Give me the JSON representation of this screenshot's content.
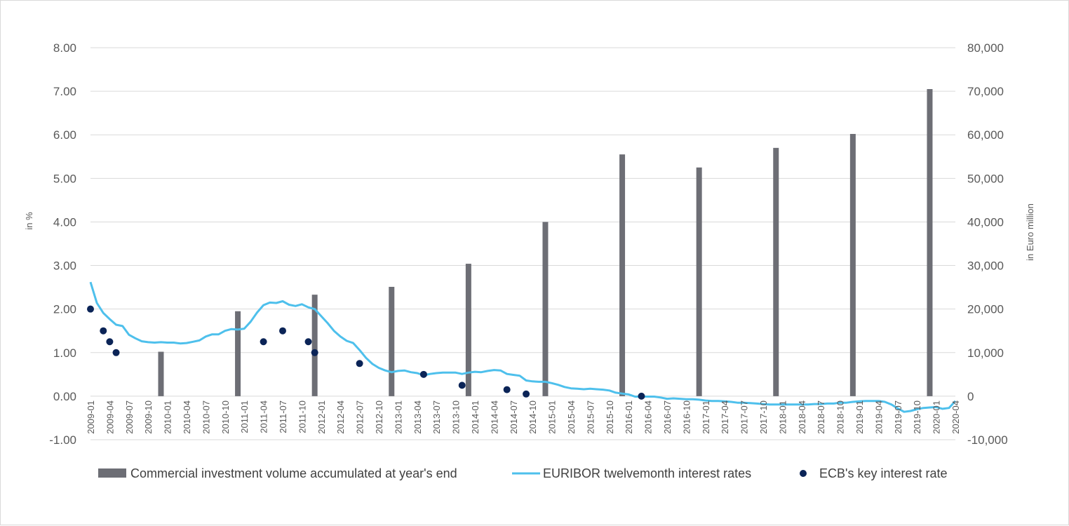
{
  "chart_data": {
    "type": "bar",
    "title": "",
    "y_left": {
      "label": "in %",
      "range": [
        -1.0,
        8.0
      ],
      "ticks": [
        "-1.00",
        "0.00",
        "1.00",
        "2.00",
        "3.00",
        "4.00",
        "5.00",
        "6.00",
        "7.00",
        "8.00"
      ]
    },
    "y_right": {
      "label": "in Euro million",
      "range": [
        -10000,
        80000
      ],
      "ticks": [
        "-10,000",
        "0",
        "10,000",
        "20,000",
        "30,000",
        "40,000",
        "50,000",
        "60,000",
        "70,000",
        "80,000"
      ]
    },
    "x_tick_labels": [
      "2009-01",
      "2009-04",
      "2009-07",
      "2009-10",
      "2010-01",
      "2010-04",
      "2010-07",
      "2010-10",
      "2011-01",
      "2011-04",
      "2011-07",
      "2011-10",
      "2012-01",
      "2012-04",
      "2012-07",
      "2012-10",
      "2013-01",
      "2013-04",
      "2013-07",
      "2013-10",
      "2014-01",
      "2014-04",
      "2014-07",
      "2014-10",
      "2015-01",
      "2015-04",
      "2015-07",
      "2015-10",
      "2016-01",
      "2016-04",
      "2016-07",
      "2016-10",
      "2017-01",
      "2017-04",
      "2017-07",
      "2017-10",
      "2018-01",
      "2018-04",
      "2018-07",
      "2018-10",
      "2019-01",
      "2019-04",
      "2019-07",
      "2019-10",
      "2020-01",
      "2020-04"
    ],
    "grid": "horizontal",
    "legend_position": "bottom",
    "series": [
      {
        "name": "Commercial investment volume accumulated at year's end",
        "type": "bar",
        "axis": "right",
        "color": "#6d6e75",
        "points": [
          {
            "x": "2009-12",
            "y": 10200
          },
          {
            "x": "2010-12",
            "y": 19500
          },
          {
            "x": "2011-12",
            "y": 23300
          },
          {
            "x": "2012-12",
            "y": 25100
          },
          {
            "x": "2013-12",
            "y": 30400
          },
          {
            "x": "2014-12",
            "y": 40000
          },
          {
            "x": "2015-12",
            "y": 55500
          },
          {
            "x": "2016-12",
            "y": 52500
          },
          {
            "x": "2017-12",
            "y": 57000
          },
          {
            "x": "2018-12",
            "y": 60200
          },
          {
            "x": "2019-12",
            "y": 70500
          }
        ]
      },
      {
        "name": "EURIBOR twelvemonth interest rates",
        "type": "line",
        "axis": "left",
        "color": "#4ec0ec",
        "points": [
          {
            "x": "2009-01",
            "y": 2.62
          },
          {
            "x": "2009-02",
            "y": 2.14
          },
          {
            "x": "2009-03",
            "y": 1.91
          },
          {
            "x": "2009-04",
            "y": 1.77
          },
          {
            "x": "2009-05",
            "y": 1.64
          },
          {
            "x": "2009-06",
            "y": 1.61
          },
          {
            "x": "2009-07",
            "y": 1.41
          },
          {
            "x": "2009-08",
            "y": 1.33
          },
          {
            "x": "2009-09",
            "y": 1.26
          },
          {
            "x": "2009-10",
            "y": 1.24
          },
          {
            "x": "2009-11",
            "y": 1.23
          },
          {
            "x": "2009-12",
            "y": 1.24
          },
          {
            "x": "2010-01",
            "y": 1.23
          },
          {
            "x": "2010-02",
            "y": 1.23
          },
          {
            "x": "2010-03",
            "y": 1.21
          },
          {
            "x": "2010-04",
            "y": 1.22
          },
          {
            "x": "2010-05",
            "y": 1.25
          },
          {
            "x": "2010-06",
            "y": 1.28
          },
          {
            "x": "2010-07",
            "y": 1.37
          },
          {
            "x": "2010-08",
            "y": 1.42
          },
          {
            "x": "2010-09",
            "y": 1.42
          },
          {
            "x": "2010-10",
            "y": 1.5
          },
          {
            "x": "2010-11",
            "y": 1.54
          },
          {
            "x": "2010-12",
            "y": 1.53
          },
          {
            "x": "2011-01",
            "y": 1.55
          },
          {
            "x": "2011-02",
            "y": 1.71
          },
          {
            "x": "2011-03",
            "y": 1.92
          },
          {
            "x": "2011-04",
            "y": 2.09
          },
          {
            "x": "2011-05",
            "y": 2.15
          },
          {
            "x": "2011-06",
            "y": 2.14
          },
          {
            "x": "2011-07",
            "y": 2.18
          },
          {
            "x": "2011-08",
            "y": 2.1
          },
          {
            "x": "2011-09",
            "y": 2.07
          },
          {
            "x": "2011-10",
            "y": 2.11
          },
          {
            "x": "2011-11",
            "y": 2.04
          },
          {
            "x": "2011-12",
            "y": 2.0
          },
          {
            "x": "2012-01",
            "y": 1.84
          },
          {
            "x": "2012-02",
            "y": 1.68
          },
          {
            "x": "2012-03",
            "y": 1.5
          },
          {
            "x": "2012-04",
            "y": 1.37
          },
          {
            "x": "2012-05",
            "y": 1.27
          },
          {
            "x": "2012-06",
            "y": 1.22
          },
          {
            "x": "2012-07",
            "y": 1.06
          },
          {
            "x": "2012-08",
            "y": 0.88
          },
          {
            "x": "2012-09",
            "y": 0.74
          },
          {
            "x": "2012-10",
            "y": 0.65
          },
          {
            "x": "2012-11",
            "y": 0.59
          },
          {
            "x": "2012-12",
            "y": 0.55
          },
          {
            "x": "2013-01",
            "y": 0.58
          },
          {
            "x": "2013-02",
            "y": 0.59
          },
          {
            "x": "2013-03",
            "y": 0.55
          },
          {
            "x": "2013-04",
            "y": 0.53
          },
          {
            "x": "2013-05",
            "y": 0.48
          },
          {
            "x": "2013-06",
            "y": 0.51
          },
          {
            "x": "2013-07",
            "y": 0.53
          },
          {
            "x": "2013-08",
            "y": 0.54
          },
          {
            "x": "2013-09",
            "y": 0.54
          },
          {
            "x": "2013-10",
            "y": 0.54
          },
          {
            "x": "2013-11",
            "y": 0.51
          },
          {
            "x": "2013-12",
            "y": 0.54
          },
          {
            "x": "2014-01",
            "y": 0.56
          },
          {
            "x": "2014-02",
            "y": 0.55
          },
          {
            "x": "2014-03",
            "y": 0.58
          },
          {
            "x": "2014-04",
            "y": 0.6
          },
          {
            "x": "2014-05",
            "y": 0.59
          },
          {
            "x": "2014-06",
            "y": 0.51
          },
          {
            "x": "2014-07",
            "y": 0.49
          },
          {
            "x": "2014-08",
            "y": 0.47
          },
          {
            "x": "2014-09",
            "y": 0.36
          },
          {
            "x": "2014-10",
            "y": 0.34
          },
          {
            "x": "2014-11",
            "y": 0.33
          },
          {
            "x": "2014-12",
            "y": 0.33
          },
          {
            "x": "2015-01",
            "y": 0.3
          },
          {
            "x": "2015-02",
            "y": 0.26
          },
          {
            "x": "2015-03",
            "y": 0.21
          },
          {
            "x": "2015-04",
            "y": 0.18
          },
          {
            "x": "2015-05",
            "y": 0.17
          },
          {
            "x": "2015-06",
            "y": 0.16
          },
          {
            "x": "2015-07",
            "y": 0.17
          },
          {
            "x": "2015-08",
            "y": 0.16
          },
          {
            "x": "2015-09",
            "y": 0.15
          },
          {
            "x": "2015-10",
            "y": 0.13
          },
          {
            "x": "2015-11",
            "y": 0.08
          },
          {
            "x": "2015-12",
            "y": 0.06
          },
          {
            "x": "2016-01",
            "y": 0.04
          },
          {
            "x": "2016-02",
            "y": -0.01
          },
          {
            "x": "2016-03",
            "y": -0.01
          },
          {
            "x": "2016-04",
            "y": -0.01
          },
          {
            "x": "2016-05",
            "y": -0.01
          },
          {
            "x": "2016-06",
            "y": -0.03
          },
          {
            "x": "2016-07",
            "y": -0.06
          },
          {
            "x": "2016-08",
            "y": -0.05
          },
          {
            "x": "2016-09",
            "y": -0.06
          },
          {
            "x": "2016-10",
            "y": -0.07
          },
          {
            "x": "2016-11",
            "y": -0.07
          },
          {
            "x": "2016-12",
            "y": -0.08
          },
          {
            "x": "2017-01",
            "y": -0.1
          },
          {
            "x": "2017-02",
            "y": -0.11
          },
          {
            "x": "2017-03",
            "y": -0.11
          },
          {
            "x": "2017-04",
            "y": -0.12
          },
          {
            "x": "2017-05",
            "y": -0.13
          },
          {
            "x": "2017-06",
            "y": -0.15
          },
          {
            "x": "2017-07",
            "y": -0.15
          },
          {
            "x": "2017-08",
            "y": -0.16
          },
          {
            "x": "2017-09",
            "y": -0.17
          },
          {
            "x": "2017-10",
            "y": -0.18
          },
          {
            "x": "2017-11",
            "y": -0.19
          },
          {
            "x": "2017-12",
            "y": -0.19
          },
          {
            "x": "2018-01",
            "y": -0.19
          },
          {
            "x": "2018-02",
            "y": -0.19
          },
          {
            "x": "2018-03",
            "y": -0.19
          },
          {
            "x": "2018-04",
            "y": -0.19
          },
          {
            "x": "2018-05",
            "y": -0.19
          },
          {
            "x": "2018-06",
            "y": -0.18
          },
          {
            "x": "2018-07",
            "y": -0.18
          },
          {
            "x": "2018-08",
            "y": -0.17
          },
          {
            "x": "2018-09",
            "y": -0.17
          },
          {
            "x": "2018-10",
            "y": -0.15
          },
          {
            "x": "2018-11",
            "y": -0.15
          },
          {
            "x": "2018-12",
            "y": -0.13
          },
          {
            "x": "2019-01",
            "y": -0.12
          },
          {
            "x": "2019-02",
            "y": -0.11
          },
          {
            "x": "2019-03",
            "y": -0.11
          },
          {
            "x": "2019-04",
            "y": -0.11
          },
          {
            "x": "2019-05",
            "y": -0.13
          },
          {
            "x": "2019-06",
            "y": -0.19
          },
          {
            "x": "2019-07",
            "y": -0.28
          },
          {
            "x": "2019-08",
            "y": -0.36
          },
          {
            "x": "2019-09",
            "y": -0.34
          },
          {
            "x": "2019-10",
            "y": -0.3
          },
          {
            "x": "2019-11",
            "y": -0.27
          },
          {
            "x": "2019-12",
            "y": -0.26
          },
          {
            "x": "2020-01",
            "y": -0.25
          },
          {
            "x": "2020-02",
            "y": -0.29
          },
          {
            "x": "2020-03",
            "y": -0.27
          },
          {
            "x": "2020-04",
            "y": -0.11
          }
        ]
      },
      {
        "name": "ECB's key interest rate",
        "type": "scatter",
        "axis": "left",
        "color": "#0b2457",
        "points": [
          {
            "x": "2009-01",
            "y": 2.0
          },
          {
            "x": "2009-03",
            "y": 1.5
          },
          {
            "x": "2009-04",
            "y": 1.25
          },
          {
            "x": "2009-05",
            "y": 1.0
          },
          {
            "x": "2011-04",
            "y": 1.25
          },
          {
            "x": "2011-07",
            "y": 1.5
          },
          {
            "x": "2011-11",
            "y": 1.25
          },
          {
            "x": "2011-12",
            "y": 1.0
          },
          {
            "x": "2012-07",
            "y": 0.75
          },
          {
            "x": "2013-05",
            "y": 0.5
          },
          {
            "x": "2013-11",
            "y": 0.25
          },
          {
            "x": "2014-06",
            "y": 0.15
          },
          {
            "x": "2014-09",
            "y": 0.05
          },
          {
            "x": "2016-03",
            "y": 0.0
          }
        ]
      }
    ]
  }
}
